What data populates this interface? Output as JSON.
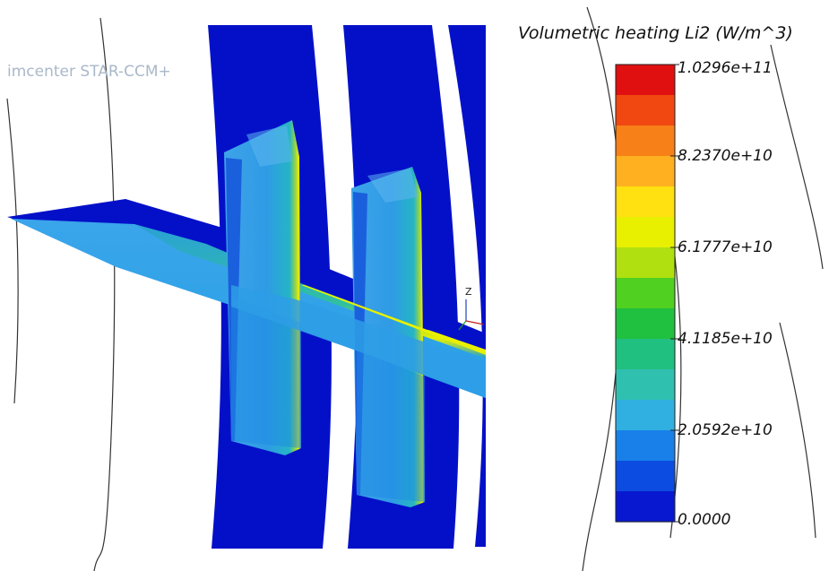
{
  "viewer": {
    "watermark": "imcenter STAR-CCM+",
    "axis_triad_label": "Z"
  },
  "colorbar": {
    "title": "Volumetric heating Li2 (W/m^3)",
    "tick_labels": [
      "1.0296e+11",
      "8.2370e+10",
      "6.1777e+10",
      "4.1185e+10",
      "2.0592e+10",
      "0.0000"
    ],
    "colors": [
      "#e01010",
      "#f04810",
      "#f88018",
      "#ffb020",
      "#ffe010",
      "#e8f000",
      "#b0e010",
      "#50d020",
      "#20c040",
      "#20c080",
      "#30c0b0",
      "#30b0e0",
      "#1880e8",
      "#0c4ce0",
      "#0818d0"
    ],
    "min_color": "#0018c8",
    "max_color": "#e01010"
  }
}
